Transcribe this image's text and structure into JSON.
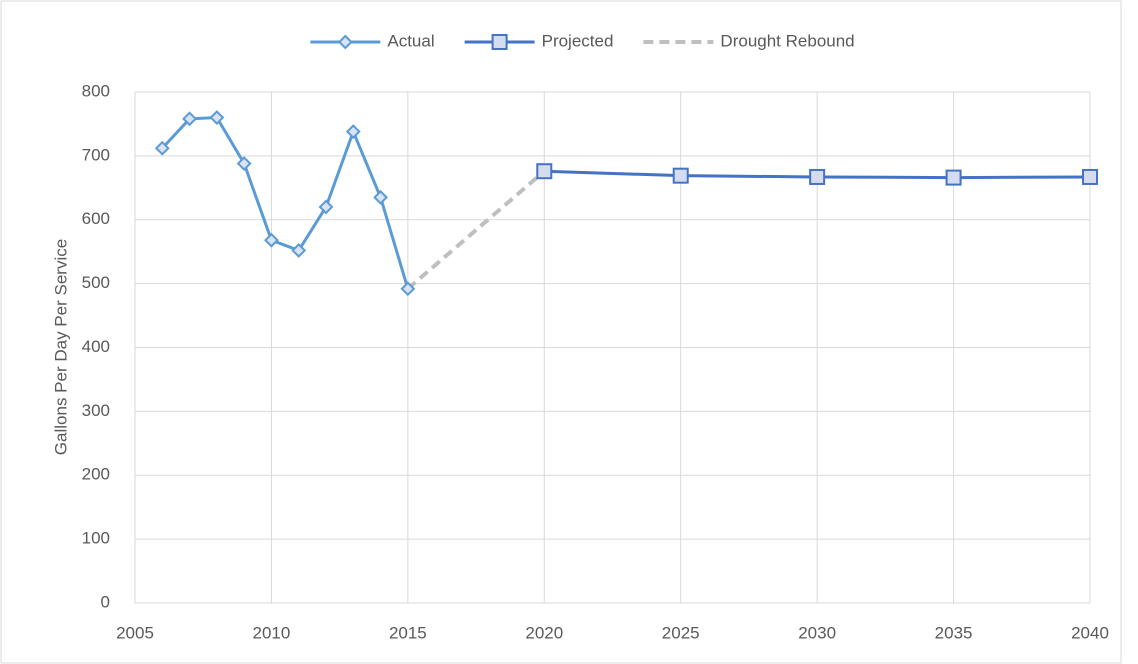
{
  "chart_data": {
    "type": "line",
    "y_label": "Gallons Per Day Per Service",
    "series": [
      {
        "name": "Actual",
        "color": "#5b9bd5",
        "marker": "diamond",
        "dash": false,
        "x": [
          2006,
          2007,
          2008,
          2009,
          2010,
          2011,
          2012,
          2013,
          2014,
          2015
        ],
        "values": [
          712,
          758,
          760,
          688,
          568,
          552,
          620,
          738,
          635,
          492
        ]
      },
      {
        "name": "Projected",
        "color": "#4472c4",
        "marker": "square",
        "dash": false,
        "x": [
          2020,
          2025,
          2030,
          2035,
          2040
        ],
        "values": [
          676,
          669,
          667,
          666,
          667
        ]
      },
      {
        "name": "Drought Rebound",
        "color": "#bfbfbf",
        "marker": "none",
        "dash": true,
        "x": [
          2015,
          2020
        ],
        "values": [
          492,
          676
        ]
      }
    ],
    "xlim": [
      2005,
      2040
    ],
    "xticks": [
      2005,
      2010,
      2015,
      2020,
      2025,
      2030,
      2035,
      2040
    ],
    "ylim": [
      0,
      800
    ],
    "yticks": [
      0,
      100,
      200,
      300,
      400,
      500,
      600,
      700,
      800
    ],
    "grid": true,
    "legend": "top"
  }
}
